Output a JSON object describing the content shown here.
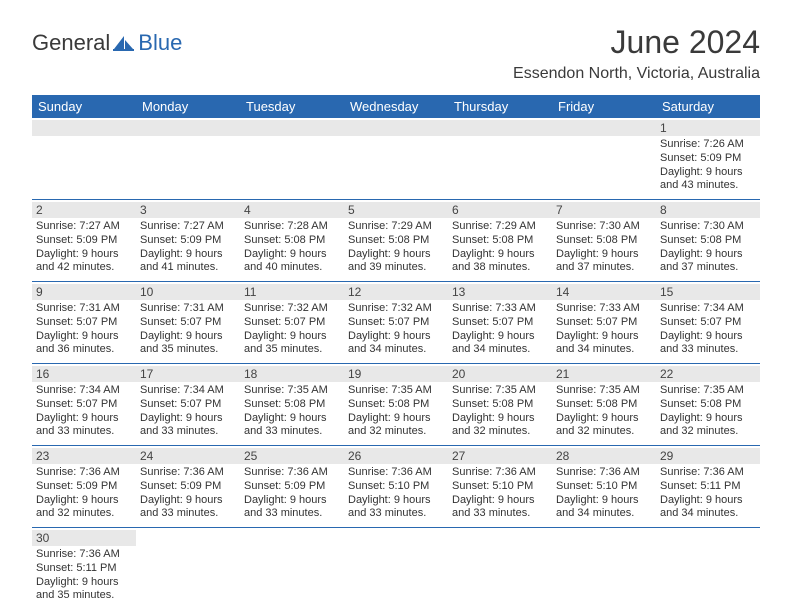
{
  "logo": {
    "text1": "General",
    "text2": "Blue",
    "text1_color": "#3a3a3a",
    "text2_color": "#2968b0",
    "icon_color": "#2968b0"
  },
  "header": {
    "month_title": "June 2024",
    "location": "Essendon North, Victoria, Australia"
  },
  "colors": {
    "header_bg": "#2968b0",
    "header_text": "#ffffff",
    "day_num_bg": "#e8e8e8",
    "border": "#2968b0",
    "text": "#333333"
  },
  "day_names": [
    "Sunday",
    "Monday",
    "Tuesday",
    "Wednesday",
    "Thursday",
    "Friday",
    "Saturday"
  ],
  "weeks": [
    [
      null,
      null,
      null,
      null,
      null,
      null,
      {
        "n": "1",
        "sunrise": "Sunrise: 7:26 AM",
        "sunset": "Sunset: 5:09 PM",
        "daylight1": "Daylight: 9 hours",
        "daylight2": "and 43 minutes."
      }
    ],
    [
      {
        "n": "2",
        "sunrise": "Sunrise: 7:27 AM",
        "sunset": "Sunset: 5:09 PM",
        "daylight1": "Daylight: 9 hours",
        "daylight2": "and 42 minutes."
      },
      {
        "n": "3",
        "sunrise": "Sunrise: 7:27 AM",
        "sunset": "Sunset: 5:09 PM",
        "daylight1": "Daylight: 9 hours",
        "daylight2": "and 41 minutes."
      },
      {
        "n": "4",
        "sunrise": "Sunrise: 7:28 AM",
        "sunset": "Sunset: 5:08 PM",
        "daylight1": "Daylight: 9 hours",
        "daylight2": "and 40 minutes."
      },
      {
        "n": "5",
        "sunrise": "Sunrise: 7:29 AM",
        "sunset": "Sunset: 5:08 PM",
        "daylight1": "Daylight: 9 hours",
        "daylight2": "and 39 minutes."
      },
      {
        "n": "6",
        "sunrise": "Sunrise: 7:29 AM",
        "sunset": "Sunset: 5:08 PM",
        "daylight1": "Daylight: 9 hours",
        "daylight2": "and 38 minutes."
      },
      {
        "n": "7",
        "sunrise": "Sunrise: 7:30 AM",
        "sunset": "Sunset: 5:08 PM",
        "daylight1": "Daylight: 9 hours",
        "daylight2": "and 37 minutes."
      },
      {
        "n": "8",
        "sunrise": "Sunrise: 7:30 AM",
        "sunset": "Sunset: 5:08 PM",
        "daylight1": "Daylight: 9 hours",
        "daylight2": "and 37 minutes."
      }
    ],
    [
      {
        "n": "9",
        "sunrise": "Sunrise: 7:31 AM",
        "sunset": "Sunset: 5:07 PM",
        "daylight1": "Daylight: 9 hours",
        "daylight2": "and 36 minutes."
      },
      {
        "n": "10",
        "sunrise": "Sunrise: 7:31 AM",
        "sunset": "Sunset: 5:07 PM",
        "daylight1": "Daylight: 9 hours",
        "daylight2": "and 35 minutes."
      },
      {
        "n": "11",
        "sunrise": "Sunrise: 7:32 AM",
        "sunset": "Sunset: 5:07 PM",
        "daylight1": "Daylight: 9 hours",
        "daylight2": "and 35 minutes."
      },
      {
        "n": "12",
        "sunrise": "Sunrise: 7:32 AM",
        "sunset": "Sunset: 5:07 PM",
        "daylight1": "Daylight: 9 hours",
        "daylight2": "and 34 minutes."
      },
      {
        "n": "13",
        "sunrise": "Sunrise: 7:33 AM",
        "sunset": "Sunset: 5:07 PM",
        "daylight1": "Daylight: 9 hours",
        "daylight2": "and 34 minutes."
      },
      {
        "n": "14",
        "sunrise": "Sunrise: 7:33 AM",
        "sunset": "Sunset: 5:07 PM",
        "daylight1": "Daylight: 9 hours",
        "daylight2": "and 34 minutes."
      },
      {
        "n": "15",
        "sunrise": "Sunrise: 7:34 AM",
        "sunset": "Sunset: 5:07 PM",
        "daylight1": "Daylight: 9 hours",
        "daylight2": "and 33 minutes."
      }
    ],
    [
      {
        "n": "16",
        "sunrise": "Sunrise: 7:34 AM",
        "sunset": "Sunset: 5:07 PM",
        "daylight1": "Daylight: 9 hours",
        "daylight2": "and 33 minutes."
      },
      {
        "n": "17",
        "sunrise": "Sunrise: 7:34 AM",
        "sunset": "Sunset: 5:07 PM",
        "daylight1": "Daylight: 9 hours",
        "daylight2": "and 33 minutes."
      },
      {
        "n": "18",
        "sunrise": "Sunrise: 7:35 AM",
        "sunset": "Sunset: 5:08 PM",
        "daylight1": "Daylight: 9 hours",
        "daylight2": "and 33 minutes."
      },
      {
        "n": "19",
        "sunrise": "Sunrise: 7:35 AM",
        "sunset": "Sunset: 5:08 PM",
        "daylight1": "Daylight: 9 hours",
        "daylight2": "and 32 minutes."
      },
      {
        "n": "20",
        "sunrise": "Sunrise: 7:35 AM",
        "sunset": "Sunset: 5:08 PM",
        "daylight1": "Daylight: 9 hours",
        "daylight2": "and 32 minutes."
      },
      {
        "n": "21",
        "sunrise": "Sunrise: 7:35 AM",
        "sunset": "Sunset: 5:08 PM",
        "daylight1": "Daylight: 9 hours",
        "daylight2": "and 32 minutes."
      },
      {
        "n": "22",
        "sunrise": "Sunrise: 7:35 AM",
        "sunset": "Sunset: 5:08 PM",
        "daylight1": "Daylight: 9 hours",
        "daylight2": "and 32 minutes."
      }
    ],
    [
      {
        "n": "23",
        "sunrise": "Sunrise: 7:36 AM",
        "sunset": "Sunset: 5:09 PM",
        "daylight1": "Daylight: 9 hours",
        "daylight2": "and 32 minutes."
      },
      {
        "n": "24",
        "sunrise": "Sunrise: 7:36 AM",
        "sunset": "Sunset: 5:09 PM",
        "daylight1": "Daylight: 9 hours",
        "daylight2": "and 33 minutes."
      },
      {
        "n": "25",
        "sunrise": "Sunrise: 7:36 AM",
        "sunset": "Sunset: 5:09 PM",
        "daylight1": "Daylight: 9 hours",
        "daylight2": "and 33 minutes."
      },
      {
        "n": "26",
        "sunrise": "Sunrise: 7:36 AM",
        "sunset": "Sunset: 5:10 PM",
        "daylight1": "Daylight: 9 hours",
        "daylight2": "and 33 minutes."
      },
      {
        "n": "27",
        "sunrise": "Sunrise: 7:36 AM",
        "sunset": "Sunset: 5:10 PM",
        "daylight1": "Daylight: 9 hours",
        "daylight2": "and 33 minutes."
      },
      {
        "n": "28",
        "sunrise": "Sunrise: 7:36 AM",
        "sunset": "Sunset: 5:10 PM",
        "daylight1": "Daylight: 9 hours",
        "daylight2": "and 34 minutes."
      },
      {
        "n": "29",
        "sunrise": "Sunrise: 7:36 AM",
        "sunset": "Sunset: 5:11 PM",
        "daylight1": "Daylight: 9 hours",
        "daylight2": "and 34 minutes."
      }
    ],
    [
      {
        "n": "30",
        "sunrise": "Sunrise: 7:36 AM",
        "sunset": "Sunset: 5:11 PM",
        "daylight1": "Daylight: 9 hours",
        "daylight2": "and 35 minutes."
      },
      null,
      null,
      null,
      null,
      null,
      null
    ]
  ]
}
